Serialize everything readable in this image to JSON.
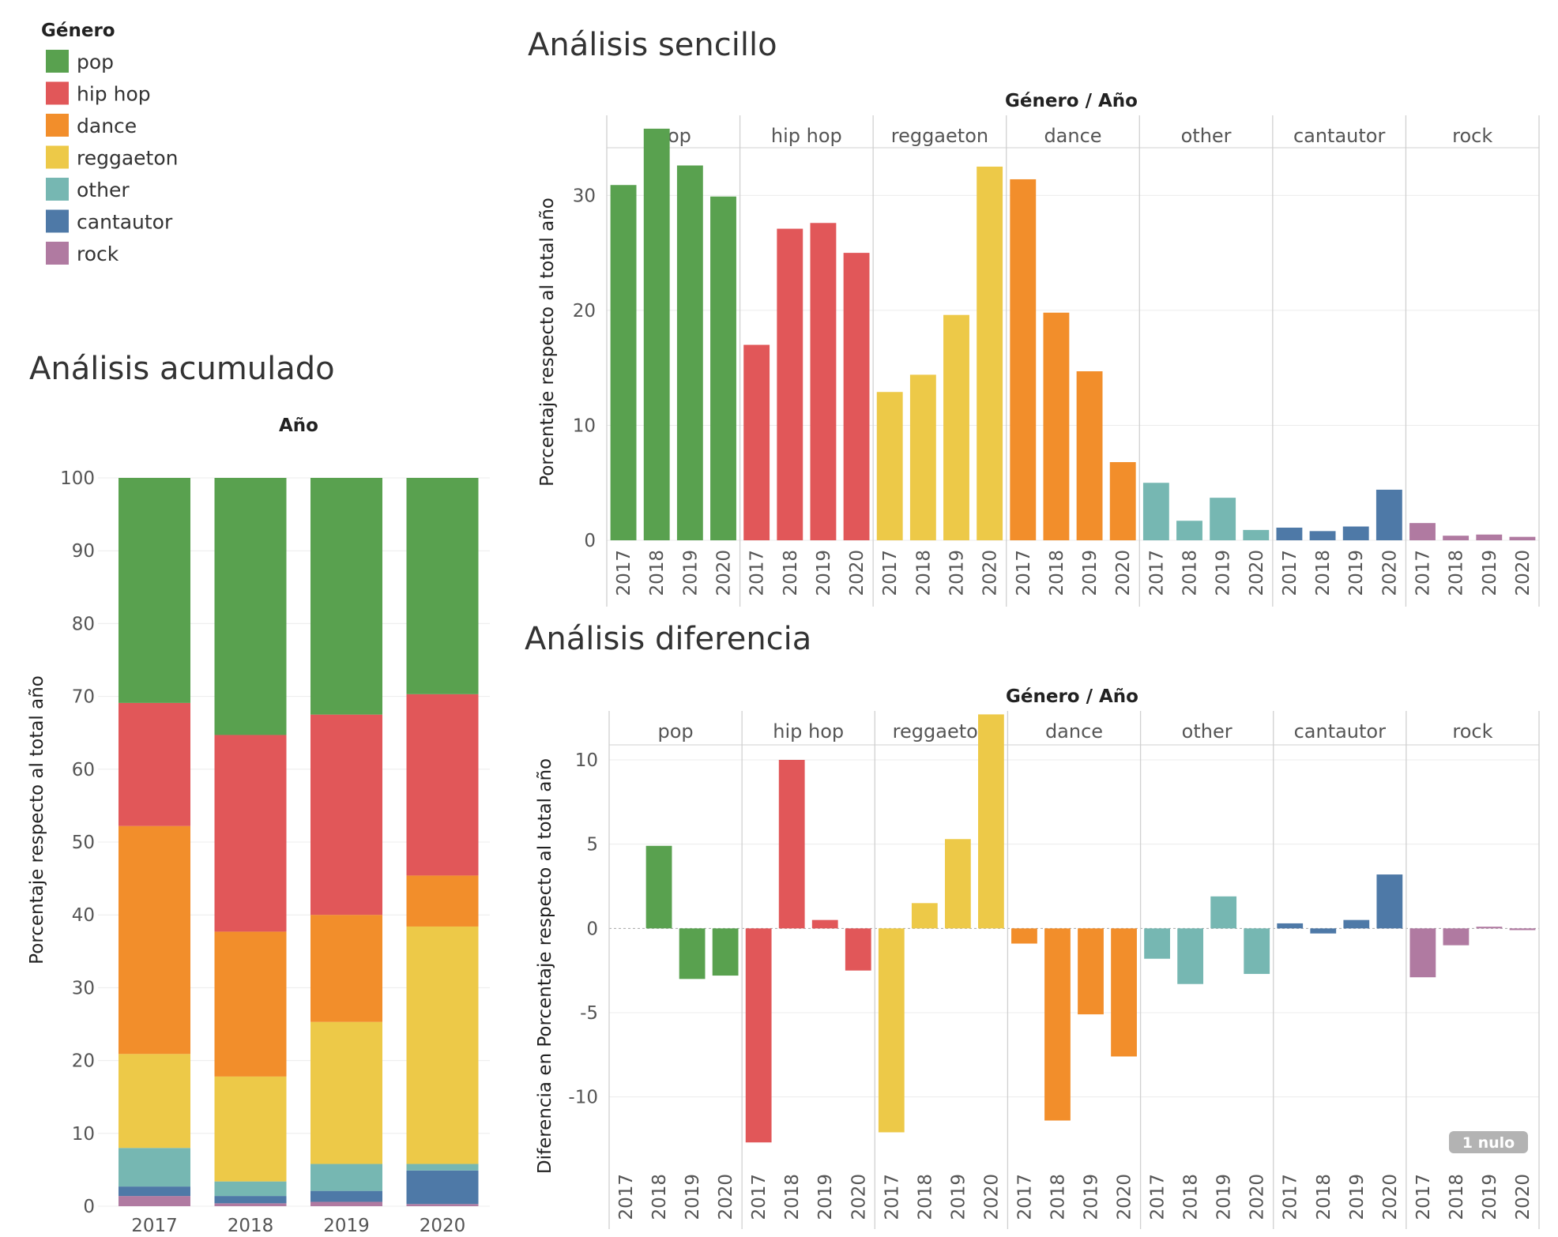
{
  "legend": {
    "title": "Género",
    "items": [
      {
        "label": "pop",
        "color": "#59a14f"
      },
      {
        "label": "hip hop",
        "color": "#e15759"
      },
      {
        "label": "dance",
        "color": "#f28e2b"
      },
      {
        "label": "reggaeton",
        "color": "#edc948"
      },
      {
        "label": "other",
        "color": "#76b7b2"
      },
      {
        "label": "cantautor",
        "color": "#4e79a7"
      },
      {
        "label": "rock",
        "color": "#b07aa1"
      }
    ]
  },
  "panels": {
    "acumulado": {
      "title": "Análisis acumulado",
      "top_header": "Año",
      "ylabel": "Porcentaje respecto al total año"
    },
    "sencillo": {
      "title": "Análisis sencillo",
      "top_header": "Género / Año",
      "ylabel": "Porcentaje respecto al total año"
    },
    "diferencia": {
      "title": "Análisis diferencia",
      "top_header": "Género / Año",
      "ylabel": "Diferencia en Porcentaje respecto al total año",
      "null_badge": "1 nulo"
    }
  },
  "chart_data": [
    {
      "type": "bar",
      "stacked": true,
      "title": "Análisis acumulado",
      "xlabel": "Año",
      "ylabel": "Porcentaje respecto al total año",
      "categories": [
        "2017",
        "2018",
        "2019",
        "2020"
      ],
      "ylim": [
        0,
        100
      ],
      "yticks": [
        0,
        10,
        20,
        30,
        40,
        50,
        60,
        70,
        80,
        90,
        100
      ],
      "series": [
        {
          "name": "rock",
          "color": "#b07aa1",
          "values": [
            1.4,
            0.4,
            0.6,
            0.3
          ]
        },
        {
          "name": "cantautor",
          "color": "#4e79a7",
          "values": [
            1.3,
            1.0,
            1.5,
            4.6
          ]
        },
        {
          "name": "other",
          "color": "#76b7b2",
          "values": [
            5.3,
            2.0,
            3.7,
            0.9
          ]
        },
        {
          "name": "reggaeton",
          "color": "#edc948",
          "values": [
            12.9,
            14.4,
            19.5,
            32.6
          ]
        },
        {
          "name": "dance",
          "color": "#f28e2b",
          "values": [
            31.3,
            19.9,
            14.7,
            7.0
          ]
        },
        {
          "name": "hip hop",
          "color": "#e15759",
          "values": [
            16.9,
            27.0,
            27.5,
            24.9
          ]
        },
        {
          "name": "pop",
          "color": "#59a14f",
          "values": [
            30.9,
            35.3,
            32.5,
            29.7
          ]
        }
      ]
    },
    {
      "type": "bar",
      "title": "Análisis sencillo",
      "xlabel": "Género / Año",
      "ylabel": "Porcentaje respecto al total año",
      "years": [
        "2017",
        "2018",
        "2019",
        "2020"
      ],
      "ylim": [
        0,
        36
      ],
      "yticks": [
        0,
        10,
        20,
        30
      ],
      "series": [
        {
          "name": "pop",
          "color": "#59a14f",
          "values": [
            30.9,
            35.8,
            32.6,
            29.9
          ]
        },
        {
          "name": "hip hop",
          "color": "#e15759",
          "values": [
            17.0,
            27.1,
            27.6,
            25.0
          ]
        },
        {
          "name": "reggaeton",
          "color": "#edc948",
          "values": [
            12.9,
            14.4,
            19.6,
            32.5
          ]
        },
        {
          "name": "dance",
          "color": "#f28e2b",
          "values": [
            31.4,
            19.8,
            14.7,
            6.8
          ]
        },
        {
          "name": "other",
          "color": "#76b7b2",
          "values": [
            5.0,
            1.7,
            3.7,
            0.9
          ]
        },
        {
          "name": "cantautor",
          "color": "#4e79a7",
          "values": [
            1.1,
            0.8,
            1.2,
            4.4
          ]
        },
        {
          "name": "rock",
          "color": "#b07aa1",
          "values": [
            1.5,
            0.4,
            0.5,
            0.3
          ]
        }
      ]
    },
    {
      "type": "bar",
      "title": "Análisis diferencia",
      "xlabel": "Género / Año",
      "ylabel": "Diferencia en Porcentaje respecto al total año",
      "years": [
        "2017",
        "2018",
        "2019",
        "2020"
      ],
      "ylim": [
        -14,
        13
      ],
      "yticks": [
        -10,
        -5,
        0,
        5,
        10
      ],
      "series": [
        {
          "name": "pop",
          "color": "#59a14f",
          "values": [
            null,
            4.9,
            -3.0,
            -2.8
          ]
        },
        {
          "name": "hip hop",
          "color": "#e15759",
          "values": [
            -12.7,
            10.0,
            0.5,
            -2.5
          ]
        },
        {
          "name": "reggaeton",
          "color": "#edc948",
          "values": [
            -12.1,
            1.5,
            5.3,
            12.7
          ]
        },
        {
          "name": "dance",
          "color": "#f28e2b",
          "values": [
            -0.9,
            -11.4,
            -5.1,
            -7.6
          ]
        },
        {
          "name": "other",
          "color": "#76b7b2",
          "values": [
            -1.8,
            -3.3,
            1.9,
            -2.7
          ]
        },
        {
          "name": "cantautor",
          "color": "#4e79a7",
          "values": [
            0.3,
            -0.3,
            0.5,
            3.2
          ]
        },
        {
          "name": "rock",
          "color": "#b07aa1",
          "values": [
            -2.9,
            -1.0,
            0.1,
            -0.1
          ]
        }
      ]
    }
  ]
}
